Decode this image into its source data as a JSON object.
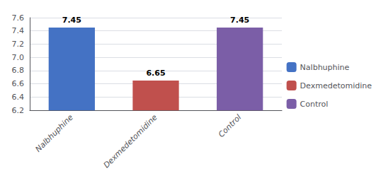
{
  "chart_data": {
    "type": "bar",
    "categories": [
      "Nalbhuphine",
      "Dexmedetomidine",
      "Control"
    ],
    "values": [
      7.45,
      6.65,
      7.45
    ],
    "colors": [
      "#4472C4",
      "#C0504D",
      "#7B5EA7"
    ],
    "data_labels": true,
    "ylim": [
      6.2,
      7.6
    ],
    "yticks": [
      6.2,
      6.4,
      6.6,
      6.8,
      {
        "value": 7.0,
        "label": "7.0"
      },
      7.2,
      7.4,
      7.6
    ],
    "grid": true,
    "legend": "right"
  }
}
